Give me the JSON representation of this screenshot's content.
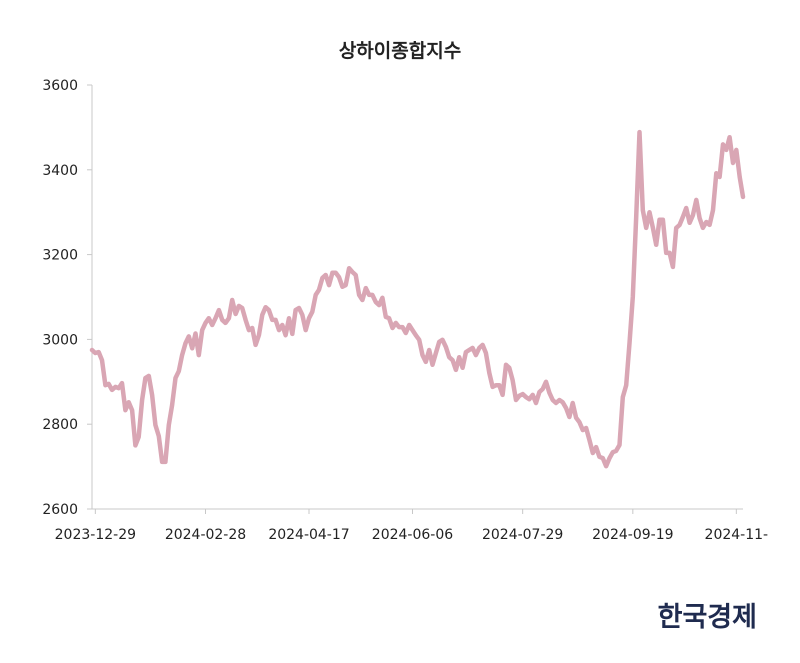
{
  "chart_data": {
    "type": "line",
    "title": "상하이종합지수",
    "xlabel": "",
    "ylabel": "",
    "ylim": [
      2600,
      3600
    ],
    "yticks": [
      2600,
      2800,
      3000,
      3200,
      3400,
      3600
    ],
    "xticks": [
      {
        "label": "2023-12-29",
        "index": 1
      },
      {
        "label": "2024-02-28",
        "index": 34
      },
      {
        "label": "2024-04-17",
        "index": 65
      },
      {
        "label": "2024-06-06",
        "index": 96
      },
      {
        "label": "2024-07-29",
        "index": 129
      },
      {
        "label": "2024-09-19",
        "index": 162
      },
      {
        "label": "2024-11-",
        "index": 193
      }
    ],
    "grid": false,
    "line_color": "#d9a6b4",
    "series": [
      {
        "name": "상하이종합지수",
        "values": [
          2975,
          2968,
          2970,
          2951,
          2892,
          2895,
          2881,
          2888,
          2885,
          2897,
          2833,
          2852,
          2833,
          2750,
          2770,
          2857,
          2909,
          2914,
          2869,
          2798,
          2772,
          2711,
          2711,
          2798,
          2845,
          2909,
          2925,
          2963,
          2991,
          3007,
          2979,
          3014,
          2963,
          3022,
          3039,
          3050,
          3034,
          3050,
          3069,
          3046,
          3039,
          3050,
          3093,
          3060,
          3079,
          3074,
          3046,
          3022,
          3027,
          2987,
          3010,
          3058,
          3076,
          3069,
          3046,
          3046,
          3022,
          3034,
          3010,
          3050,
          3013,
          3069,
          3074,
          3058,
          3022,
          3050,
          3065,
          3105,
          3117,
          3145,
          3152,
          3128,
          3157,
          3157,
          3147,
          3124,
          3128,
          3168,
          3159,
          3152,
          3105,
          3093,
          3121,
          3105,
          3105,
          3088,
          3081,
          3098,
          3053,
          3050,
          3027,
          3039,
          3029,
          3029,
          3015,
          3034,
          3022,
          3010,
          2999,
          2963,
          2947,
          2975,
          2940,
          2968,
          2994,
          2999,
          2982,
          2958,
          2951,
          2928,
          2958,
          2933,
          2970,
          2975,
          2980,
          2963,
          2980,
          2987,
          2968,
          2921,
          2888,
          2892,
          2892,
          2869,
          2940,
          2933,
          2904,
          2857,
          2867,
          2871,
          2864,
          2859,
          2869,
          2850,
          2876,
          2883,
          2900,
          2874,
          2857,
          2850,
          2857,
          2852,
          2838,
          2817,
          2850,
          2815,
          2805,
          2786,
          2791,
          2763,
          2732,
          2746,
          2723,
          2720,
          2701,
          2720,
          2734,
          2737,
          2751,
          2864,
          2892,
          2991,
          3100,
          3289,
          3489,
          3305,
          3263,
          3300,
          3263,
          3223,
          3282,
          3282,
          3204,
          3204,
          3171,
          3263,
          3270,
          3289,
          3310,
          3275,
          3293,
          3329,
          3286,
          3263,
          3277,
          3270,
          3305,
          3392,
          3383,
          3460,
          3447,
          3477,
          3416,
          3447,
          3383,
          3336
        ]
      }
    ]
  },
  "branding": {
    "logo_text": "한국경제"
  }
}
